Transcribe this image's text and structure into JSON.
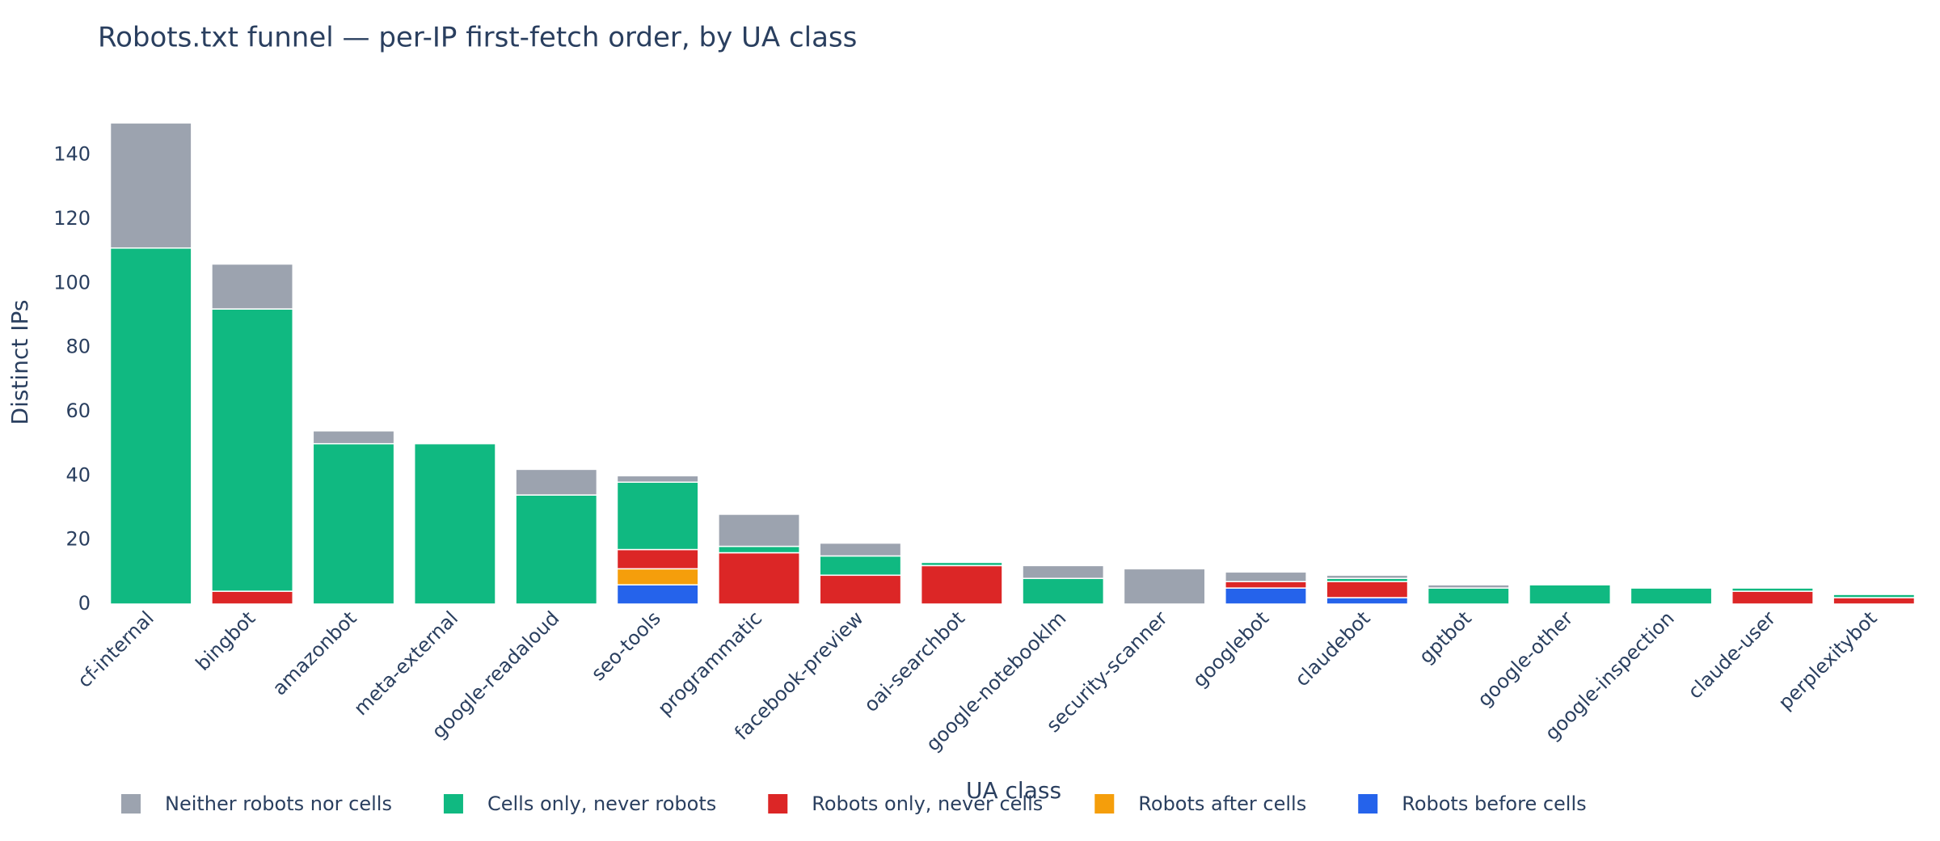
{
  "chart_data": {
    "type": "bar",
    "stacked": true,
    "title": "Robots.txt funnel — per-IP first-fetch order, by UA class",
    "x_label": "UA class",
    "y_label": "Distinct IPs",
    "categories": [
      "cf-internal",
      "bingbot",
      "amazonbot",
      "meta-external",
      "google-readaloud",
      "seo-tools",
      "programmatic",
      "facebook-preview",
      "oai-searchbot",
      "google-notebooklm",
      "security-scanner",
      "googlebot",
      "claudebot",
      "gptbot",
      "google-other",
      "google-inspection",
      "claude-user",
      "perplexitybot"
    ],
    "series": [
      {
        "name": "Neither robots nor cells",
        "color": "#9ca3af",
        "values": [
          39,
          14,
          4,
          0,
          8,
          2,
          10,
          4,
          0,
          4,
          11,
          3,
          1,
          1,
          0,
          0,
          0,
          0
        ]
      },
      {
        "name": "Cells only, never robots",
        "color": "#10b981",
        "values": [
          111,
          88,
          50,
          50,
          34,
          21,
          2,
          6,
          1,
          8,
          0,
          0,
          1,
          5,
          6,
          5,
          1,
          1
        ]
      },
      {
        "name": "Robots only, never cells",
        "color": "#dc2626",
        "values": [
          0,
          4,
          0,
          0,
          0,
          6,
          16,
          9,
          12,
          0,
          0,
          2,
          5,
          0,
          0,
          0,
          4,
          2
        ]
      },
      {
        "name": "Robots after cells",
        "color": "#f59e0b",
        "values": [
          0,
          0,
          0,
          0,
          0,
          5,
          0,
          0,
          0,
          0,
          0,
          0,
          0,
          0,
          0,
          0,
          0,
          0
        ]
      },
      {
        "name": "Robots before cells",
        "color": "#2563eb",
        "values": [
          0,
          0,
          0,
          0,
          0,
          6,
          0,
          0,
          0,
          0,
          0,
          5,
          2,
          0,
          0,
          0,
          0,
          0
        ]
      }
    ],
    "ylim": [
      0,
      150
    ],
    "yticks": [
      0,
      20,
      40,
      60,
      80,
      100,
      120,
      140
    ],
    "grid": false,
    "legend": "bottom"
  }
}
